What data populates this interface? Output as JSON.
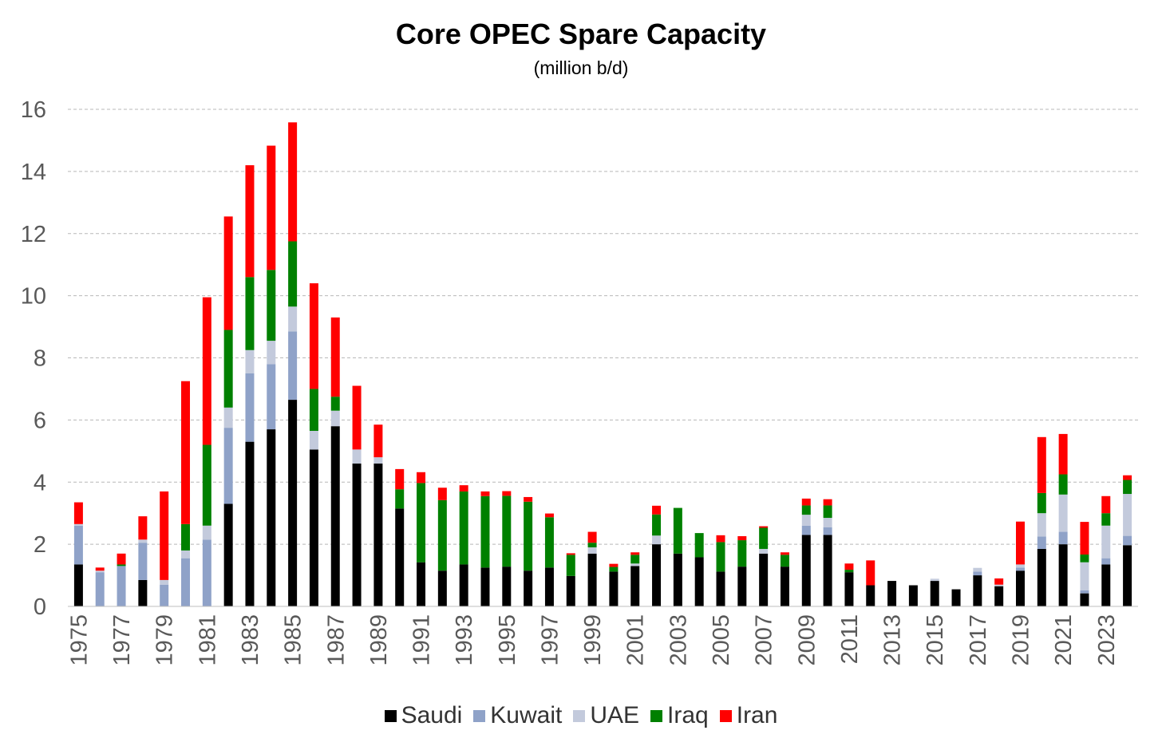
{
  "chart_data": {
    "type": "bar",
    "stacked": true,
    "title": "Core OPEC Spare Capacity",
    "subtitle": "(million b/d)",
    "xlabel": "",
    "ylabel": "",
    "ylim": [
      0,
      16
    ],
    "yticks": [
      0,
      2,
      4,
      6,
      8,
      10,
      12,
      14,
      16
    ],
    "grid": true,
    "legend_position": "bottom",
    "categories": [
      "1975",
      "1976",
      "1977",
      "1978",
      "1979",
      "1980",
      "1981",
      "1982",
      "1983",
      "1984",
      "1985",
      "1986",
      "1987",
      "1988",
      "1989",
      "1990",
      "1991",
      "1992",
      "1993",
      "1994",
      "1995",
      "1996",
      "1997",
      "1998",
      "1999",
      "2000",
      "2001",
      "2002",
      "2003",
      "2004",
      "2005",
      "2006",
      "2007",
      "2008",
      "2009",
      "2010",
      "2011",
      "2012",
      "2013",
      "2014",
      "2015",
      "2016",
      "2017",
      "2018",
      "2019",
      "2020",
      "2021",
      "2022",
      "2023",
      "2024"
    ],
    "x_tick_labels": [
      "1975",
      "1977",
      "1979",
      "1981",
      "1983",
      "1985",
      "1987",
      "1989",
      "1991",
      "1993",
      "1995",
      "1997",
      "1999",
      "2001",
      "2003",
      "2005",
      "2007",
      "2009",
      "2011",
      "2013",
      "2015",
      "2017",
      "2019",
      "2021",
      "2023"
    ],
    "series": [
      {
        "name": "Saudi",
        "color": "#000000",
        "values": [
          1.35,
          0,
          0,
          0.85,
          0,
          0,
          0,
          3.3,
          5.3,
          5.7,
          6.65,
          5.05,
          5.8,
          4.6,
          4.6,
          3.15,
          1.42,
          1.15,
          1.35,
          1.25,
          1.28,
          1.15,
          1.25,
          0.98,
          1.7,
          1.12,
          1.3,
          2.0,
          1.7,
          1.58,
          1.12,
          1.28,
          1.7,
          1.28,
          2.3,
          2.3,
          1.1,
          0.68,
          0.82,
          0.68,
          0.82,
          0.55,
          1.0,
          0.65,
          1.15,
          1.85,
          2.0,
          0.42,
          1.35,
          1.97
        ]
      },
      {
        "name": "Kuwait",
        "color": "#8FA2C8",
        "values": [
          1.25,
          1.1,
          1.3,
          1.2,
          0.7,
          1.55,
          2.15,
          2.45,
          2.2,
          2.1,
          2.2,
          0,
          0,
          0,
          0,
          0,
          0,
          0,
          0,
          0,
          0,
          0,
          0,
          0,
          0,
          0,
          0,
          0,
          0,
          0,
          0,
          0,
          0,
          0,
          0.3,
          0.25,
          0,
          0,
          0,
          0,
          0,
          0,
          0.12,
          0,
          0.1,
          0.4,
          0.4,
          0.1,
          0.2,
          0.3
        ]
      },
      {
        "name": "UAE",
        "color": "#C3CADC",
        "values": [
          0.05,
          0.05,
          0,
          0.1,
          0.15,
          0.25,
          0.45,
          0.65,
          0.75,
          0.75,
          0.8,
          0.6,
          0.5,
          0.45,
          0.2,
          0,
          0,
          0,
          0,
          0,
          0,
          0,
          0,
          0,
          0.2,
          0,
          0.08,
          0.28,
          0,
          0,
          0,
          0,
          0.15,
          0,
          0.35,
          0.3,
          0,
          0,
          0,
          0,
          0.07,
          0,
          0.12,
          0.05,
          0.1,
          0.75,
          1.2,
          0.9,
          1.05,
          1.35
        ]
      },
      {
        "name": "Iraq",
        "color": "#008000",
        "values": [
          0,
          0,
          0.05,
          0,
          0,
          0.85,
          2.6,
          2.5,
          2.35,
          2.28,
          2.1,
          1.35,
          0.45,
          0,
          0,
          0.62,
          2.55,
          2.27,
          2.35,
          2.3,
          2.28,
          2.22,
          1.62,
          0.68,
          0.15,
          0.15,
          0.28,
          0.68,
          1.47,
          0.78,
          0.95,
          0.85,
          0.68,
          0.38,
          0.3,
          0.4,
          0.08,
          0,
          0,
          0,
          0,
          0,
          0,
          0,
          0,
          0.65,
          0.65,
          0.25,
          0.4,
          0.45
        ]
      },
      {
        "name": "Iran",
        "color": "#FF0000",
        "values": [
          0.7,
          0.1,
          0.35,
          0.75,
          2.85,
          4.6,
          4.75,
          3.65,
          3.6,
          4.0,
          3.83,
          3.4,
          2.55,
          2.05,
          1.05,
          0.65,
          0.35,
          0.4,
          0.2,
          0.15,
          0.15,
          0.15,
          0.12,
          0.05,
          0.35,
          0.1,
          0.08,
          0.28,
          0,
          0,
          0.22,
          0.13,
          0.05,
          0.08,
          0.22,
          0.2,
          0.2,
          0.8,
          0,
          0,
          0,
          0,
          0,
          0.2,
          1.38,
          1.8,
          1.3,
          1.05,
          0.55,
          0.15
        ]
      }
    ]
  }
}
